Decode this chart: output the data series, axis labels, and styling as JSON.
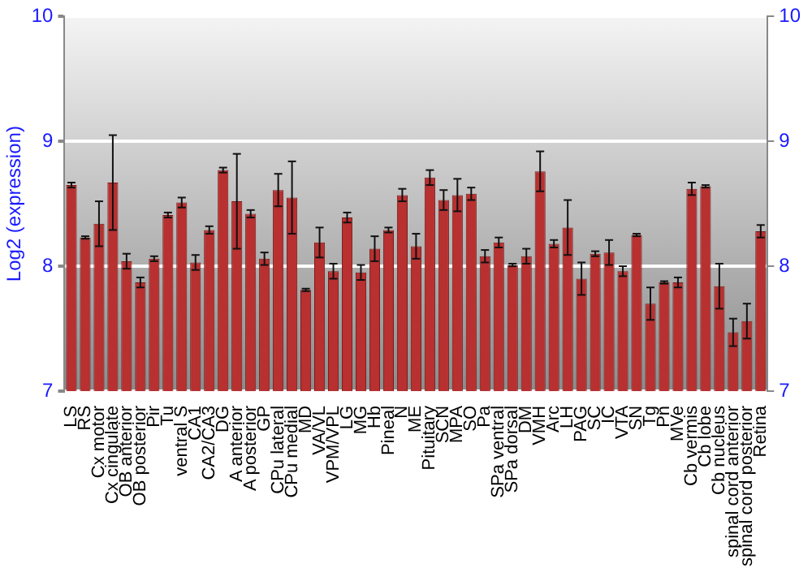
{
  "chart_data": {
    "type": "bar",
    "ylabel": "Log2 (expression)",
    "categories": [
      "LS",
      "RS",
      "Cx motor",
      "Cx cingulate",
      "OB anterior",
      "OB posterior",
      "Pir",
      "Tu",
      "ventral S",
      "CA1",
      "CA2/CA3",
      "DG",
      "A anterior",
      "A posterior",
      "GP",
      "CPu lateral",
      "CPu medial",
      "MD",
      "VA/VL",
      "VPM/VPL",
      "LG",
      "MG",
      "Hb",
      "Pineal",
      "N",
      "ME",
      "Pituitary",
      "SCN",
      "MPA",
      "SO",
      "Pa",
      "SPa ventral",
      "SPa dorsal",
      "DM",
      "VMH",
      "Arc",
      "LH",
      "PAG",
      "SC",
      "IC",
      "VTA",
      "SN",
      "Tg",
      "Pn",
      "MVe",
      "Cb vermis",
      "Cb lobe",
      "Cb nucleus",
      "spinal cord anterior",
      "spinal cord posterior",
      "Retina"
    ],
    "values": [
      8.65,
      8.23,
      8.34,
      8.67,
      8.04,
      7.87,
      8.06,
      8.41,
      8.51,
      8.03,
      8.29,
      8.77,
      8.52,
      8.42,
      8.06,
      8.61,
      8.55,
      7.81,
      8.19,
      7.96,
      8.39,
      7.95,
      8.14,
      8.29,
      8.57,
      8.16,
      8.71,
      8.53,
      8.57,
      8.58,
      8.08,
      8.19,
      8.01,
      8.08,
      8.76,
      8.18,
      8.31,
      7.9,
      8.1,
      8.11,
      7.96,
      8.25,
      7.7,
      7.87,
      7.87,
      8.62,
      8.64,
      7.84,
      7.47,
      7.56,
      8.28
    ],
    "errors": [
      0.02,
      0.01,
      0.18,
      0.38,
      0.06,
      0.04,
      0.02,
      0.02,
      0.04,
      0.06,
      0.03,
      0.02,
      0.38,
      0.03,
      0.05,
      0.13,
      0.29,
      0.01,
      0.12,
      0.06,
      0.04,
      0.06,
      0.1,
      0.02,
      0.05,
      0.1,
      0.06,
      0.08,
      0.13,
      0.05,
      0.05,
      0.04,
      0.01,
      0.06,
      0.16,
      0.03,
      0.22,
      0.13,
      0.02,
      0.1,
      0.04,
      0.01,
      0.13,
      0.01,
      0.04,
      0.05,
      0.01,
      0.18,
      0.11,
      0.14,
      0.05
    ],
    "color": "#b83030",
    "ylim": [
      7,
      10
    ],
    "yticks": [
      7,
      8,
      9,
      10
    ],
    "y2lim": [
      7,
      10
    ],
    "y2ticks": [
      7,
      8,
      9,
      10
    ],
    "grid": "y",
    "legend": false
  }
}
